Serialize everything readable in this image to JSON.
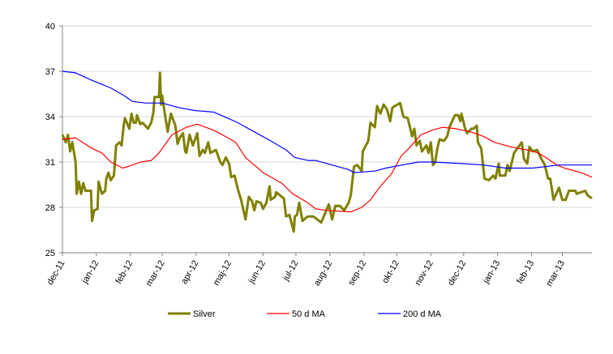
{
  "chart_data": {
    "type": "line",
    "title": "",
    "xlabel": "",
    "ylabel": "",
    "ylim": [
      25,
      40
    ],
    "yticks": [
      25,
      28,
      31,
      34,
      37,
      40
    ],
    "xlim": [
      "2011-12-01",
      "2013-03-28"
    ],
    "xtick_labels": [
      {
        "date": "2011-12-01",
        "label": "dec-11"
      },
      {
        "date": "2012-01-01",
        "label": "jan-12"
      },
      {
        "date": "2012-02-01",
        "label": "feb-12"
      },
      {
        "date": "2012-03-01",
        "label": "mar-12"
      },
      {
        "date": "2012-04-01",
        "label": "apr-12"
      },
      {
        "date": "2012-05-01",
        "label": "maj-12"
      },
      {
        "date": "2012-06-01",
        "label": "jun-12"
      },
      {
        "date": "2012-07-01",
        "label": "jul-12"
      },
      {
        "date": "2012-08-01",
        "label": "aug-12"
      },
      {
        "date": "2012-09-01",
        "label": "sep-12"
      },
      {
        "date": "2012-10-01",
        "label": "okt-12"
      },
      {
        "date": "2012-11-01",
        "label": "nov-12"
      },
      {
        "date": "2012-12-01",
        "label": "dec-12"
      },
      {
        "date": "2013-01-01",
        "label": "jan-13"
      },
      {
        "date": "2013-02-01",
        "label": "feb-13"
      },
      {
        "date": "2013-03-01",
        "label": "mar-13"
      }
    ],
    "grid": "horizontal",
    "legend_placement": "bottom",
    "series": [
      {
        "name": "Silver",
        "color": "#808000",
        "points": [
          [
            "2011-12-01",
            32.8
          ],
          [
            "2011-12-04",
            32.3
          ],
          [
            "2011-12-06",
            32.8
          ],
          [
            "2011-12-08",
            31.7
          ],
          [
            "2011-12-10",
            32.3
          ],
          [
            "2011-12-13",
            31.0
          ],
          [
            "2011-12-14",
            28.9
          ],
          [
            "2011-12-16",
            29.7
          ],
          [
            "2011-12-18",
            28.9
          ],
          [
            "2011-12-20",
            29.6
          ],
          [
            "2011-12-22",
            29.1
          ],
          [
            "2011-12-27",
            29.1
          ],
          [
            "2011-12-28",
            27.1
          ],
          [
            "2011-12-30",
            27.8
          ],
          [
            "2012-01-02",
            27.9
          ],
          [
            "2012-01-03",
            29.7
          ],
          [
            "2012-01-06",
            28.9
          ],
          [
            "2012-01-09",
            29.1
          ],
          [
            "2012-01-10",
            29.9
          ],
          [
            "2012-01-12",
            30.3
          ],
          [
            "2012-01-14",
            29.8
          ],
          [
            "2012-01-17",
            30.1
          ],
          [
            "2012-01-19",
            32.1
          ],
          [
            "2012-01-22",
            32.3
          ],
          [
            "2012-01-24",
            32.1
          ],
          [
            "2012-01-26",
            33.5
          ],
          [
            "2012-01-27",
            33.9
          ],
          [
            "2012-01-31",
            33.2
          ],
          [
            "2012-02-02",
            34.2
          ],
          [
            "2012-02-04",
            33.6
          ],
          [
            "2012-02-06",
            33.6
          ],
          [
            "2012-02-07",
            34.1
          ],
          [
            "2012-02-10",
            33.5
          ],
          [
            "2012-02-12",
            33.6
          ],
          [
            "2012-02-17",
            33.2
          ],
          [
            "2012-02-20",
            33.6
          ],
          [
            "2012-02-22",
            34.3
          ],
          [
            "2012-02-23",
            35.3
          ],
          [
            "2012-02-27",
            35.3
          ],
          [
            "2012-02-28",
            36.9
          ],
          [
            "2012-02-29",
            34.8
          ],
          [
            "2012-03-01",
            35.4
          ],
          [
            "2012-03-03",
            34.4
          ],
          [
            "2012-03-06",
            33.0
          ],
          [
            "2012-03-09",
            34.2
          ],
          [
            "2012-03-13",
            33.4
          ],
          [
            "2012-03-15",
            32.2
          ],
          [
            "2012-03-17",
            32.6
          ],
          [
            "2012-03-20",
            32.9
          ],
          [
            "2012-03-22",
            31.7
          ],
          [
            "2012-03-23",
            31.6
          ],
          [
            "2012-03-26",
            32.8
          ],
          [
            "2012-03-29",
            32.1
          ],
          [
            "2012-04-02",
            32.9
          ],
          [
            "2012-04-04",
            31.4
          ],
          [
            "2012-04-07",
            31.8
          ],
          [
            "2012-04-09",
            31.6
          ],
          [
            "2012-04-12",
            32.3
          ],
          [
            "2012-04-14",
            31.6
          ],
          [
            "2012-04-19",
            31.8
          ],
          [
            "2012-04-23",
            31.0
          ],
          [
            "2012-04-25",
            30.8
          ],
          [
            "2012-04-28",
            31.3
          ],
          [
            "2012-05-01",
            30.9
          ],
          [
            "2012-05-03",
            30.0
          ],
          [
            "2012-05-06",
            30.1
          ],
          [
            "2012-05-09",
            29.2
          ],
          [
            "2012-05-12",
            28.5
          ],
          [
            "2012-05-16",
            27.2
          ],
          [
            "2012-05-19",
            28.7
          ],
          [
            "2012-05-22",
            28.4
          ],
          [
            "2012-05-24",
            27.8
          ],
          [
            "2012-05-26",
            28.4
          ],
          [
            "2012-05-30",
            28.3
          ],
          [
            "2012-06-01",
            27.9
          ],
          [
            "2012-06-04",
            28.3
          ],
          [
            "2012-06-07",
            29.4
          ],
          [
            "2012-06-08",
            28.5
          ],
          [
            "2012-06-12",
            28.7
          ],
          [
            "2012-06-13",
            29.0
          ],
          [
            "2012-06-18",
            28.7
          ],
          [
            "2012-06-20",
            28.6
          ],
          [
            "2012-06-22",
            27.4
          ],
          [
            "2012-06-25",
            27.5
          ],
          [
            "2012-06-29",
            26.4
          ],
          [
            "2012-06-30",
            27.4
          ],
          [
            "2012-07-02",
            27.5
          ],
          [
            "2012-07-04",
            28.3
          ],
          [
            "2012-07-07",
            27.1
          ],
          [
            "2012-07-10",
            27.3
          ],
          [
            "2012-07-12",
            27.4
          ],
          [
            "2012-07-17",
            27.4
          ],
          [
            "2012-07-24",
            27.0
          ],
          [
            "2012-07-31",
            28.2
          ],
          [
            "2012-08-03",
            27.2
          ],
          [
            "2012-08-06",
            28.1
          ],
          [
            "2012-08-10",
            28.1
          ],
          [
            "2012-08-14",
            27.8
          ],
          [
            "2012-08-18",
            28.3
          ],
          [
            "2012-08-20",
            28.8
          ],
          [
            "2012-08-23",
            30.7
          ],
          [
            "2012-08-26",
            30.8
          ],
          [
            "2012-08-30",
            30.4
          ],
          [
            "2012-08-31",
            31.7
          ],
          [
            "2012-09-05",
            32.4
          ],
          [
            "2012-09-07",
            33.6
          ],
          [
            "2012-09-11",
            33.3
          ],
          [
            "2012-09-13",
            34.7
          ],
          [
            "2012-09-16",
            34.2
          ],
          [
            "2012-09-19",
            34.8
          ],
          [
            "2012-09-22",
            34.5
          ],
          [
            "2012-09-25",
            33.7
          ],
          [
            "2012-09-27",
            34.6
          ],
          [
            "2012-10-04",
            34.9
          ],
          [
            "2012-10-07",
            34.0
          ],
          [
            "2012-10-11",
            33.9
          ],
          [
            "2012-10-15",
            32.7
          ],
          [
            "2012-10-17",
            33.2
          ],
          [
            "2012-10-19",
            32.1
          ],
          [
            "2012-10-22",
            32.4
          ],
          [
            "2012-10-24",
            31.7
          ],
          [
            "2012-10-28",
            32.1
          ],
          [
            "2012-10-30",
            31.6
          ],
          [
            "2012-11-01",
            32.3
          ],
          [
            "2012-11-03",
            30.8
          ],
          [
            "2012-11-05",
            31.0
          ],
          [
            "2012-11-07",
            31.9
          ],
          [
            "2012-11-09",
            32.5
          ],
          [
            "2012-11-13",
            32.4
          ],
          [
            "2012-11-16",
            32.7
          ],
          [
            "2012-11-18",
            33.3
          ],
          [
            "2012-11-23",
            34.1
          ],
          [
            "2012-11-26",
            34.1
          ],
          [
            "2012-11-28",
            33.7
          ],
          [
            "2012-11-29",
            34.2
          ],
          [
            "2012-12-02",
            33.3
          ],
          [
            "2012-12-04",
            32.9
          ],
          [
            "2012-12-08",
            33.2
          ],
          [
            "2012-12-10",
            33.2
          ],
          [
            "2012-12-13",
            33.4
          ],
          [
            "2012-12-14",
            32.3
          ],
          [
            "2012-12-17",
            31.9
          ],
          [
            "2012-12-20",
            29.9
          ],
          [
            "2012-12-24",
            29.8
          ],
          [
            "2012-12-28",
            30.1
          ],
          [
            "2012-12-30",
            29.9
          ],
          [
            "2013-01-02",
            30.9
          ],
          [
            "2013-01-03",
            30.1
          ],
          [
            "2013-01-08",
            30.1
          ],
          [
            "2013-01-10",
            30.8
          ],
          [
            "2013-01-12",
            30.4
          ],
          [
            "2013-01-16",
            31.6
          ],
          [
            "2013-01-20",
            32.0
          ],
          [
            "2013-01-23",
            32.3
          ],
          [
            "2013-01-25",
            31.2
          ],
          [
            "2013-01-28",
            30.9
          ],
          [
            "2013-01-30",
            32.0
          ],
          [
            "2013-02-02",
            31.7
          ],
          [
            "2013-02-06",
            31.8
          ],
          [
            "2013-02-10",
            31.2
          ],
          [
            "2013-02-13",
            30.8
          ],
          [
            "2013-02-16",
            29.9
          ],
          [
            "2013-02-18",
            29.9
          ],
          [
            "2013-02-21",
            28.5
          ],
          [
            "2013-02-26",
            29.3
          ],
          [
            "2013-03-01",
            28.5
          ],
          [
            "2013-03-04",
            28.5
          ],
          [
            "2013-03-07",
            29.1
          ],
          [
            "2013-03-13",
            29.1
          ],
          [
            "2013-03-14",
            28.9
          ],
          [
            "2013-03-22",
            29.1
          ],
          [
            "2013-03-24",
            28.8
          ],
          [
            "2013-03-28",
            28.6
          ]
        ]
      },
      {
        "name": "50 d MA",
        "color": "#ff0000",
        "points": [
          [
            "2011-12-01",
            32.5
          ],
          [
            "2011-12-13",
            32.6
          ],
          [
            "2011-12-28",
            31.9
          ],
          [
            "2012-01-06",
            31.6
          ],
          [
            "2012-01-14",
            31.0
          ],
          [
            "2012-01-25",
            30.6
          ],
          [
            "2012-02-03",
            30.8
          ],
          [
            "2012-02-10",
            31.0
          ],
          [
            "2012-02-20",
            31.1
          ],
          [
            "2012-02-27",
            31.6
          ],
          [
            "2012-03-04",
            32.2
          ],
          [
            "2012-03-10",
            32.8
          ],
          [
            "2012-03-23",
            33.3
          ],
          [
            "2012-04-02",
            33.5
          ],
          [
            "2012-04-17",
            33.1
          ],
          [
            "2012-04-30",
            32.6
          ],
          [
            "2012-05-07",
            32.3
          ],
          [
            "2012-05-16",
            31.3
          ],
          [
            "2012-06-01",
            30.3
          ],
          [
            "2012-06-18",
            29.6
          ],
          [
            "2012-06-28",
            28.9
          ],
          [
            "2012-07-12",
            28.3
          ],
          [
            "2012-07-19",
            27.9
          ],
          [
            "2012-07-29",
            27.8
          ],
          [
            "2012-08-20",
            27.7
          ],
          [
            "2012-08-30",
            28.0
          ],
          [
            "2012-09-07",
            28.5
          ],
          [
            "2012-09-16",
            29.4
          ],
          [
            "2012-09-26",
            30.2
          ],
          [
            "2012-10-05",
            31.4
          ],
          [
            "2012-10-12",
            31.9
          ],
          [
            "2012-10-23",
            32.8
          ],
          [
            "2012-11-02",
            33.1
          ],
          [
            "2012-11-12",
            33.3
          ],
          [
            "2012-11-24",
            33.2
          ],
          [
            "2012-12-07",
            33.0
          ],
          [
            "2012-12-19",
            32.7
          ],
          [
            "2012-12-29",
            32.3
          ],
          [
            "2013-01-13",
            32.0
          ],
          [
            "2013-01-28",
            31.8
          ],
          [
            "2013-02-07",
            31.6
          ],
          [
            "2013-02-16",
            31.2
          ],
          [
            "2013-02-24",
            30.8
          ],
          [
            "2013-03-03",
            30.6
          ],
          [
            "2013-03-18",
            30.3
          ],
          [
            "2013-03-28",
            30.0
          ]
        ]
      },
      {
        "name": "200 d MA",
        "color": "#0000ff",
        "points": [
          [
            "2011-12-01",
            37.0
          ],
          [
            "2011-12-13",
            36.9
          ],
          [
            "2011-12-28",
            36.4
          ],
          [
            "2012-01-14",
            35.9
          ],
          [
            "2012-01-26",
            35.4
          ],
          [
            "2012-02-03",
            35.0
          ],
          [
            "2012-02-15",
            34.9
          ],
          [
            "2012-03-01",
            34.9
          ],
          [
            "2012-03-16",
            34.6
          ],
          [
            "2012-03-31",
            34.4
          ],
          [
            "2012-04-17",
            34.3
          ],
          [
            "2012-04-30",
            33.9
          ],
          [
            "2012-05-09",
            33.6
          ],
          [
            "2012-05-24",
            33.0
          ],
          [
            "2012-06-08",
            32.4
          ],
          [
            "2012-06-22",
            31.8
          ],
          [
            "2012-06-30",
            31.3
          ],
          [
            "2012-07-12",
            31.1
          ],
          [
            "2012-07-19",
            31.1
          ],
          [
            "2012-08-03",
            30.8
          ],
          [
            "2012-08-18",
            30.5
          ],
          [
            "2012-08-23",
            30.3
          ],
          [
            "2012-09-11",
            30.4
          ],
          [
            "2012-09-21",
            30.6
          ],
          [
            "2012-10-06",
            30.8
          ],
          [
            "2012-10-21",
            31.0
          ],
          [
            "2012-11-02",
            31.0
          ],
          [
            "2012-11-29",
            30.9
          ],
          [
            "2012-12-19",
            30.8
          ],
          [
            "2013-01-08",
            30.6
          ],
          [
            "2013-02-02",
            30.6
          ],
          [
            "2013-02-26",
            30.8
          ],
          [
            "2013-03-08",
            30.8
          ],
          [
            "2013-03-28",
            30.8
          ]
        ]
      }
    ]
  }
}
